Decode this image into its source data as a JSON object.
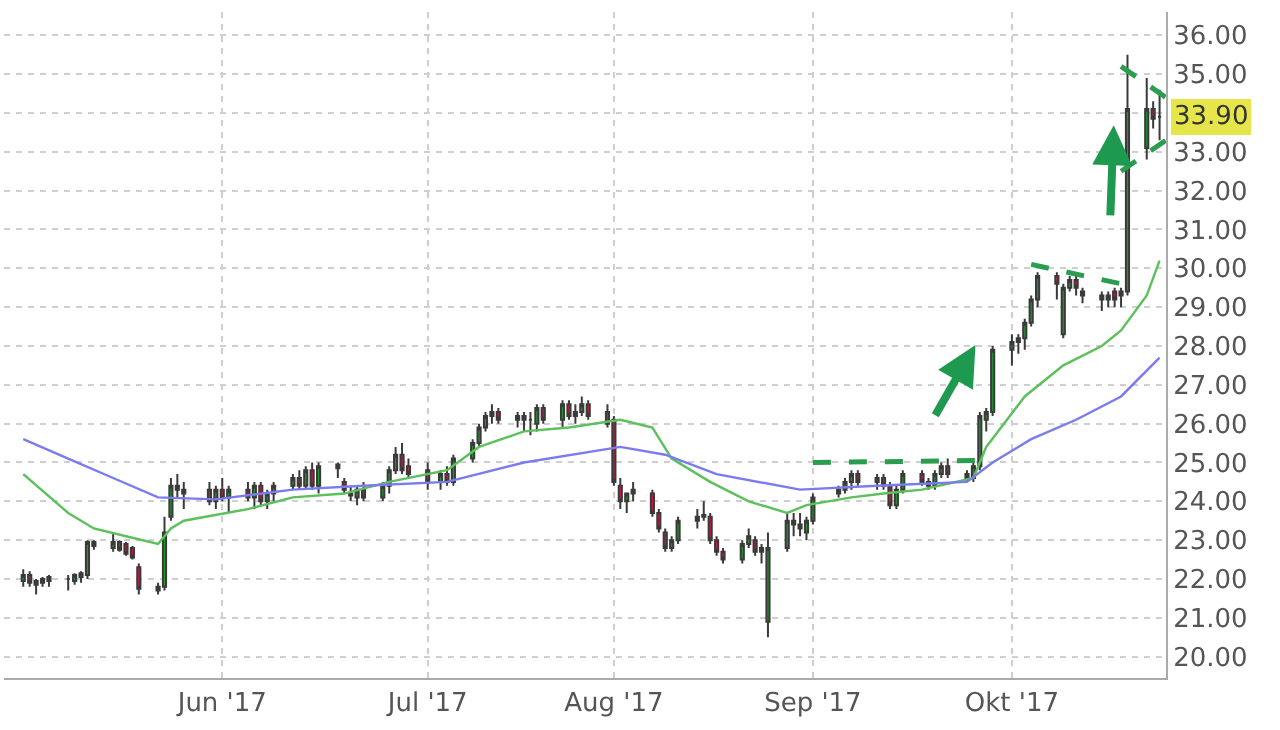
{
  "chart_data": {
    "type": "candlestick",
    "x": [
      "2017-05-01",
      "2017-05-02",
      "2017-05-03",
      "2017-05-04",
      "2017-05-05",
      "2017-05-08",
      "2017-05-09",
      "2017-05-10",
      "2017-05-11",
      "2017-05-12",
      "2017-05-15",
      "2017-05-16",
      "2017-05-17",
      "2017-05-18",
      "2017-05-19",
      "2017-05-22",
      "2017-05-23",
      "2017-05-24",
      "2017-05-25",
      "2017-05-26",
      "2017-05-30",
      "2017-05-31",
      "2017-06-01",
      "2017-06-02",
      "2017-06-05",
      "2017-06-06",
      "2017-06-07",
      "2017-06-08",
      "2017-06-09",
      "2017-06-12",
      "2017-06-13",
      "2017-06-14",
      "2017-06-15",
      "2017-06-16",
      "2017-06-19",
      "2017-06-20",
      "2017-06-21",
      "2017-06-22",
      "2017-06-23",
      "2017-06-26",
      "2017-06-27",
      "2017-06-28",
      "2017-06-29",
      "2017-06-30",
      "2017-07-03",
      "2017-07-05",
      "2017-07-06",
      "2017-07-07",
      "2017-07-10",
      "2017-07-11",
      "2017-07-12",
      "2017-07-13",
      "2017-07-14",
      "2017-07-17",
      "2017-07-18",
      "2017-07-19",
      "2017-07-20",
      "2017-07-21",
      "2017-07-24",
      "2017-07-25",
      "2017-07-26",
      "2017-07-27",
      "2017-07-28",
      "2017-07-31",
      "2017-08-01",
      "2017-08-02",
      "2017-08-03",
      "2017-08-04",
      "2017-08-07",
      "2017-08-08",
      "2017-08-09",
      "2017-08-10",
      "2017-08-11",
      "2017-08-14",
      "2017-08-15",
      "2017-08-16",
      "2017-08-17",
      "2017-08-18",
      "2017-08-21",
      "2017-08-22",
      "2017-08-23",
      "2017-08-24",
      "2017-08-25",
      "2017-08-28",
      "2017-08-29",
      "2017-08-30",
      "2017-08-31",
      "2017-09-01",
      "2017-09-05",
      "2017-09-06",
      "2017-09-07",
      "2017-09-08",
      "2017-09-11",
      "2017-09-12",
      "2017-09-13",
      "2017-09-14",
      "2017-09-15",
      "2017-09-18",
      "2017-09-19",
      "2017-09-20",
      "2017-09-21",
      "2017-09-22",
      "2017-09-25",
      "2017-09-26",
      "2017-09-27",
      "2017-09-28",
      "2017-09-29",
      "2017-10-02",
      "2017-10-03",
      "2017-10-04",
      "2017-10-05",
      "2017-10-06",
      "2017-10-09",
      "2017-10-10",
      "2017-10-11",
      "2017-10-12",
      "2017-10-13",
      "2017-10-16",
      "2017-10-17",
      "2017-10-18",
      "2017-10-19",
      "2017-10-20",
      "2017-10-23",
      "2017-10-24",
      "2017-10-25"
    ],
    "ohlc": [
      [
        21.95,
        22.25,
        21.8,
        22.1
      ],
      [
        22.1,
        22.2,
        21.8,
        21.9
      ],
      [
        21.85,
        22.0,
        21.6,
        21.95
      ],
      [
        21.9,
        22.05,
        21.8,
        22.0
      ],
      [
        21.95,
        22.1,
        21.8,
        22.05
      ],
      [
        22.0,
        22.1,
        21.7,
        22.0
      ],
      [
        21.95,
        22.15,
        21.85,
        22.1
      ],
      [
        22.05,
        22.2,
        21.9,
        22.15
      ],
      [
        22.1,
        23.0,
        22.0,
        22.95
      ],
      [
        22.95,
        23.0,
        22.75,
        22.85
      ],
      [
        22.8,
        23.2,
        22.7,
        22.95
      ],
      [
        22.95,
        23.0,
        22.7,
        22.75
      ],
      [
        22.9,
        22.95,
        22.6,
        22.65
      ],
      [
        22.8,
        22.85,
        22.5,
        22.55
      ],
      [
        22.3,
        22.4,
        21.6,
        21.75
      ],
      [
        21.8,
        21.9,
        21.6,
        21.7
      ],
      [
        21.8,
        23.6,
        21.7,
        23.2
      ],
      [
        23.6,
        24.6,
        23.5,
        24.4
      ],
      [
        24.4,
        24.7,
        24.1,
        24.3
      ],
      [
        24.2,
        24.5,
        23.8,
        24.3
      ],
      [
        24.3,
        24.5,
        23.9,
        24.0
      ],
      [
        24.0,
        24.4,
        23.8,
        24.3
      ],
      [
        24.3,
        24.6,
        24.0,
        24.1
      ],
      [
        24.1,
        24.4,
        23.7,
        24.3
      ],
      [
        24.3,
        24.5,
        24.0,
        24.1
      ],
      [
        24.1,
        24.5,
        23.8,
        24.4
      ],
      [
        24.4,
        24.5,
        23.9,
        24.0
      ],
      [
        24.0,
        24.3,
        23.8,
        24.2
      ],
      [
        24.2,
        24.5,
        24.0,
        24.4
      ],
      [
        24.4,
        24.7,
        24.3,
        24.6
      ],
      [
        24.6,
        24.8,
        24.3,
        24.4
      ],
      [
        24.4,
        24.9,
        24.3,
        24.8
      ],
      [
        24.8,
        25.0,
        24.3,
        24.4
      ],
      [
        24.4,
        25.0,
        24.2,
        24.9
      ],
      [
        24.95,
        25.0,
        24.6,
        24.85
      ],
      [
        24.5,
        24.6,
        24.2,
        24.3
      ],
      [
        24.2,
        24.4,
        24.0,
        24.15
      ],
      [
        24.1,
        24.4,
        23.9,
        24.3
      ],
      [
        24.3,
        24.5,
        24.0,
        24.1
      ],
      [
        24.1,
        24.5,
        24.0,
        24.4
      ],
      [
        24.4,
        24.9,
        24.2,
        24.8
      ],
      [
        24.8,
        25.4,
        24.7,
        25.2
      ],
      [
        25.2,
        25.5,
        24.7,
        24.8
      ],
      [
        24.9,
        25.1,
        24.6,
        24.7
      ],
      [
        24.8,
        25.0,
        24.3,
        24.5
      ],
      [
        24.5,
        24.8,
        24.3,
        24.7
      ],
      [
        24.7,
        24.9,
        24.4,
        24.5
      ],
      [
        24.5,
        25.2,
        24.4,
        25.1
      ],
      [
        25.1,
        25.6,
        25.0,
        25.5
      ],
      [
        25.5,
        26.0,
        25.4,
        25.9
      ],
      [
        25.9,
        26.3,
        25.8,
        26.2
      ],
      [
        26.2,
        26.5,
        26.0,
        26.3
      ],
      [
        26.3,
        26.4,
        26.0,
        26.1
      ],
      [
        26.1,
        26.3,
        25.9,
        26.2
      ],
      [
        26.2,
        26.3,
        25.8,
        26.1
      ],
      [
        26.1,
        26.3,
        25.7,
        26.1
      ],
      [
        26.0,
        26.5,
        25.8,
        26.4
      ],
      [
        26.4,
        26.5,
        26.0,
        26.1
      ],
      [
        26.1,
        26.6,
        25.9,
        26.5
      ],
      [
        26.5,
        26.6,
        26.1,
        26.2
      ],
      [
        26.2,
        26.5,
        26.0,
        26.3
      ],
      [
        26.3,
        26.7,
        26.2,
        26.5
      ],
      [
        26.5,
        26.6,
        26.1,
        26.2
      ],
      [
        26.3,
        26.5,
        25.9,
        26.0
      ],
      [
        26.1,
        26.2,
        24.4,
        24.5
      ],
      [
        24.4,
        24.6,
        23.8,
        24.0
      ],
      [
        24.0,
        24.2,
        23.7,
        24.2
      ],
      [
        24.2,
        24.5,
        24.0,
        24.3
      ],
      [
        24.2,
        24.3,
        23.6,
        23.7
      ],
      [
        23.7,
        23.8,
        23.2,
        23.3
      ],
      [
        23.2,
        23.3,
        22.7,
        22.8
      ],
      [
        22.8,
        23.1,
        22.7,
        23.0
      ],
      [
        23.0,
        23.6,
        22.9,
        23.5
      ],
      [
        23.5,
        23.8,
        23.3,
        23.6
      ],
      [
        23.65,
        24.0,
        23.5,
        23.6
      ],
      [
        23.6,
        23.7,
        22.9,
        23.0
      ],
      [
        23.0,
        23.1,
        22.6,
        22.7
      ],
      [
        22.7,
        22.8,
        22.4,
        22.5
      ],
      [
        22.5,
        23.0,
        22.4,
        22.9
      ],
      [
        22.9,
        23.3,
        22.8,
        23.1
      ],
      [
        23.0,
        23.1,
        22.6,
        22.7
      ],
      [
        22.7,
        22.9,
        22.4,
        22.8
      ],
      [
        20.9,
        23.2,
        20.5,
        22.8
      ],
      [
        22.8,
        23.7,
        22.7,
        23.5
      ],
      [
        23.5,
        23.7,
        23.1,
        23.4
      ],
      [
        23.4,
        23.7,
        23.1,
        23.3
      ],
      [
        23.2,
        23.6,
        23.0,
        23.5
      ],
      [
        23.5,
        24.2,
        23.4,
        24.1
      ],
      [
        24.2,
        24.4,
        24.1,
        24.3
      ],
      [
        24.3,
        24.6,
        24.2,
        24.5
      ],
      [
        24.5,
        24.8,
        24.3,
        24.7
      ],
      [
        24.7,
        24.8,
        24.4,
        24.5
      ],
      [
        24.5,
        24.7,
        24.3,
        24.6
      ],
      [
        24.6,
        24.7,
        24.3,
        24.4
      ],
      [
        24.4,
        24.5,
        23.8,
        23.9
      ],
      [
        23.9,
        24.4,
        23.8,
        24.3
      ],
      [
        24.3,
        24.8,
        24.2,
        24.7
      ],
      [
        24.7,
        24.8,
        24.4,
        24.5
      ],
      [
        24.5,
        24.6,
        24.3,
        24.4
      ],
      [
        24.4,
        24.8,
        24.3,
        24.7
      ],
      [
        24.7,
        25.0,
        24.6,
        24.9
      ],
      [
        24.9,
        25.1,
        24.6,
        24.7
      ],
      [
        24.7,
        24.8,
        24.5,
        24.6
      ],
      [
        24.6,
        25.0,
        24.5,
        24.9
      ],
      [
        24.9,
        26.3,
        24.8,
        26.2
      ],
      [
        26.1,
        26.4,
        25.8,
        26.3
      ],
      [
        26.3,
        28.0,
        26.2,
        27.9
      ],
      [
        27.9,
        28.3,
        27.5,
        28.1
      ],
      [
        28.1,
        28.3,
        27.8,
        28.2
      ],
      [
        28.2,
        28.7,
        27.9,
        28.6
      ],
      [
        28.6,
        29.3,
        28.5,
        29.2
      ],
      [
        29.2,
        29.9,
        29.0,
        29.8
      ],
      [
        29.8,
        29.9,
        29.2,
        29.6
      ],
      [
        28.3,
        29.6,
        28.2,
        29.5
      ],
      [
        29.5,
        29.8,
        29.4,
        29.7
      ],
      [
        29.7,
        29.8,
        29.3,
        29.5
      ],
      [
        29.4,
        29.5,
        29.1,
        29.3
      ],
      [
        29.3,
        29.4,
        28.9,
        29.2
      ],
      [
        29.2,
        29.4,
        29.0,
        29.3
      ],
      [
        29.4,
        29.5,
        29.0,
        29.2
      ],
      [
        29.3,
        29.5,
        29.0,
        29.4
      ],
      [
        29.4,
        35.5,
        29.3,
        34.1
      ],
      [
        33.1,
        34.9,
        32.8,
        34.1
      ],
      [
        34.1,
        34.3,
        33.6,
        33.85
      ],
      [
        33.9,
        34.6,
        33.3,
        33.9
      ]
    ],
    "series": [
      {
        "type": "line",
        "color": "#5cc05c",
        "x": [
          "2017-05-01",
          "2017-05-08",
          "2017-05-12",
          "2017-05-17",
          "2017-05-22",
          "2017-05-24",
          "2017-05-26",
          "2017-06-05",
          "2017-06-12",
          "2017-06-20",
          "2017-06-27",
          "2017-07-06",
          "2017-07-11",
          "2017-07-18",
          "2017-07-25",
          "2017-08-02",
          "2017-08-07",
          "2017-08-10",
          "2017-08-16",
          "2017-08-22",
          "2017-08-28",
          "2017-08-31",
          "2017-09-07",
          "2017-09-12",
          "2017-09-18",
          "2017-09-26",
          "2017-09-28",
          "2017-10-04",
          "2017-10-10",
          "2017-10-16",
          "2017-10-19",
          "2017-10-23",
          "2017-10-25"
        ],
        "values": [
          24.7,
          23.7,
          23.3,
          23.1,
          22.9,
          23.3,
          23.5,
          23.8,
          24.1,
          24.2,
          24.5,
          24.8,
          25.4,
          25.8,
          25.9,
          26.1,
          25.9,
          25.1,
          24.5,
          24.0,
          23.7,
          23.9,
          24.1,
          24.2,
          24.3,
          24.6,
          25.4,
          26.7,
          27.5,
          28.0,
          28.4,
          29.3,
          30.2
        ]
      },
      {
        "type": "line",
        "color": "#7b7bf0",
        "x": [
          "2017-05-01",
          "2017-05-08",
          "2017-05-15",
          "2017-05-22",
          "2017-05-31",
          "2017-06-12",
          "2017-06-23",
          "2017-07-06",
          "2017-07-18",
          "2017-08-02",
          "2017-08-09",
          "2017-08-17",
          "2017-08-30",
          "2017-09-11",
          "2017-09-25",
          "2017-09-29",
          "2017-10-05",
          "2017-10-12",
          "2017-10-19",
          "2017-10-25"
        ],
        "values": [
          25.6,
          25.1,
          24.6,
          24.1,
          24.05,
          24.3,
          24.4,
          24.5,
          25.0,
          25.4,
          25.2,
          24.7,
          24.3,
          24.4,
          24.5,
          25.0,
          25.6,
          26.1,
          26.7,
          27.7
        ]
      },
      {
        "type": "line",
        "color": "#2a9d4e",
        "line_style": "dashed",
        "x": [
          "2017-09-01",
          "2017-09-27"
        ],
        "values": [
          25.0,
          25.05
        ]
      },
      {
        "type": "line",
        "color": "#2a9d4e",
        "line_style": "dashed",
        "x": [
          "2017-10-05",
          "2017-10-19"
        ],
        "values": [
          30.1,
          29.6
        ]
      },
      {
        "type": "line",
        "color": "#2a9d4e",
        "line_style": "dashed",
        "x": [
          "2017-10-19",
          "2017-10-26"
        ],
        "values": [
          35.2,
          34.4
        ]
      },
      {
        "type": "line",
        "color": "#2a9d4e",
        "line_style": "dashed",
        "x": [
          "2017-10-19",
          "2017-10-26"
        ],
        "values": [
          32.5,
          33.3
        ]
      }
    ],
    "xlim": [
      "2017-04-28",
      "2017-10-26"
    ],
    "xticks": [
      {
        "value": "2017-06-01",
        "label": "Jun '17"
      },
      {
        "value": "2017-07-03",
        "label": "Jul '17"
      },
      {
        "value": "2017-08-01",
        "label": "Aug '17"
      },
      {
        "value": "2017-09-01",
        "label": "Sep '17"
      },
      {
        "value": "2017-10-02",
        "label": "Okt '17"
      }
    ],
    "ylim": [
      19.45,
      36.6
    ],
    "yticks": [
      {
        "value": 20,
        "label": "20.00"
      },
      {
        "value": 21,
        "label": "21.00"
      },
      {
        "value": 22,
        "label": "22.00"
      },
      {
        "value": 23,
        "label": "23.00"
      },
      {
        "value": 24,
        "label": "24.00"
      },
      {
        "value": 25,
        "label": "25.00"
      },
      {
        "value": 26,
        "label": "26.00"
      },
      {
        "value": 27,
        "label": "27.00"
      },
      {
        "value": 28,
        "label": "28.00"
      },
      {
        "value": 29,
        "label": "29.00"
      },
      {
        "value": 30,
        "label": "30.00"
      },
      {
        "value": 31,
        "label": "31.00"
      },
      {
        "value": 32,
        "label": "32.00"
      },
      {
        "value": 33,
        "label": "33.00"
      },
      {
        "value": 34,
        "label": null
      },
      {
        "value": 35,
        "label": "35.00"
      },
      {
        "value": 36,
        "label": "36.00"
      }
    ],
    "annotations": [
      "33.90"
    ],
    "grid": true
  }
}
